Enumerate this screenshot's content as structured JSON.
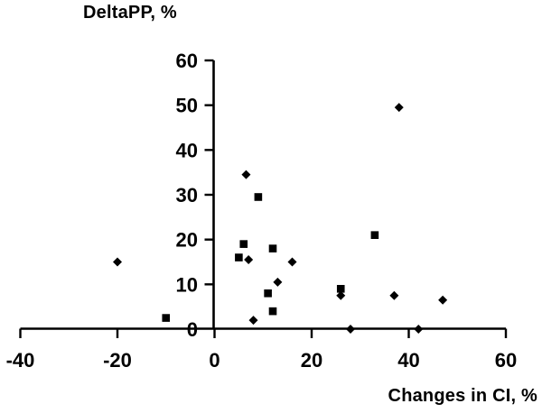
{
  "figure": {
    "background": "#ffffff",
    "foreground": "#000000"
  },
  "chart_data": {
    "type": "scatter",
    "title": "",
    "y_axis_label": "DeltaPP, %",
    "x_axis_label": "Changes in CI, %",
    "xlim": [
      -40,
      60
    ],
    "ylim": [
      0,
      60
    ],
    "x_ticks": [
      -40,
      -20,
      0,
      20,
      40,
      60
    ],
    "y_ticks": [
      0,
      10,
      20,
      30,
      40,
      50,
      60
    ],
    "grid": false,
    "legend": "none",
    "series": [
      {
        "name": "diamond-series",
        "marker": "diamond",
        "color": "#000000",
        "points": [
          [
            -20,
            15
          ],
          [
            6.5,
            34.5
          ],
          [
            7,
            15.5
          ],
          [
            8,
            2
          ],
          [
            13,
            10.5
          ],
          [
            16,
            15
          ],
          [
            26,
            7.5
          ],
          [
            28,
            0
          ],
          [
            37,
            7.5
          ],
          [
            38,
            49.5
          ],
          [
            42,
            0
          ],
          [
            47,
            6.5
          ]
        ]
      },
      {
        "name": "square-series",
        "marker": "square",
        "color": "#000000",
        "points": [
          [
            -10,
            2.5
          ],
          [
            5,
            16
          ],
          [
            6,
            19
          ],
          [
            9,
            29.5
          ],
          [
            11,
            8
          ],
          [
            12,
            18
          ],
          [
            12,
            4
          ],
          [
            26,
            9
          ],
          [
            33,
            21
          ]
        ]
      }
    ]
  }
}
